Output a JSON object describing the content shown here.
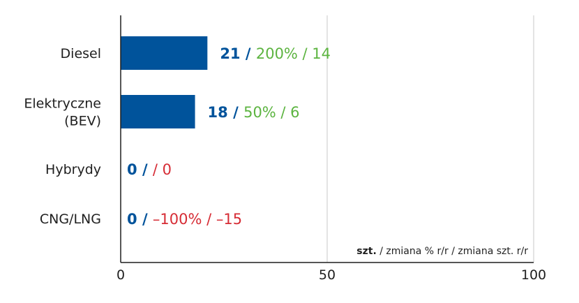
{
  "colors": {
    "bar": "#00539b",
    "count": "#00539b",
    "positive": "#5cb440",
    "negative": "#d62c35",
    "axis": "#1f1f1f",
    "grid": "#c8c8c8"
  },
  "chart_data": {
    "type": "bar",
    "orientation": "horizontal",
    "xlim": [
      0,
      100
    ],
    "x_ticks": [
      "0",
      "50",
      "100"
    ],
    "grid": "vertical",
    "categories": [
      [
        "Diesel"
      ],
      [
        "Elektryczne",
        "(BEV)"
      ],
      [
        "Hybrydy"
      ],
      [
        "CNG/LNG"
      ]
    ],
    "values": [
      21,
      18,
      0,
      0
    ],
    "data_labels": [
      {
        "count": "21",
        "sep": "/",
        "change": "200% / 14",
        "change_color": "positive"
      },
      {
        "count": "18",
        "sep": "/",
        "change": "50% / 6",
        "change_color": "positive"
      },
      {
        "count": "0",
        "sep": "/",
        "change": "/ 0",
        "change_color": "negative"
      },
      {
        "count": "0",
        "sep": "/",
        "change": "–100% / –15",
        "change_color": "negative"
      }
    ],
    "legend_note": {
      "bold": "szt.",
      "rest": " / zmiana % r/r / zmiana szt. r/r"
    }
  }
}
